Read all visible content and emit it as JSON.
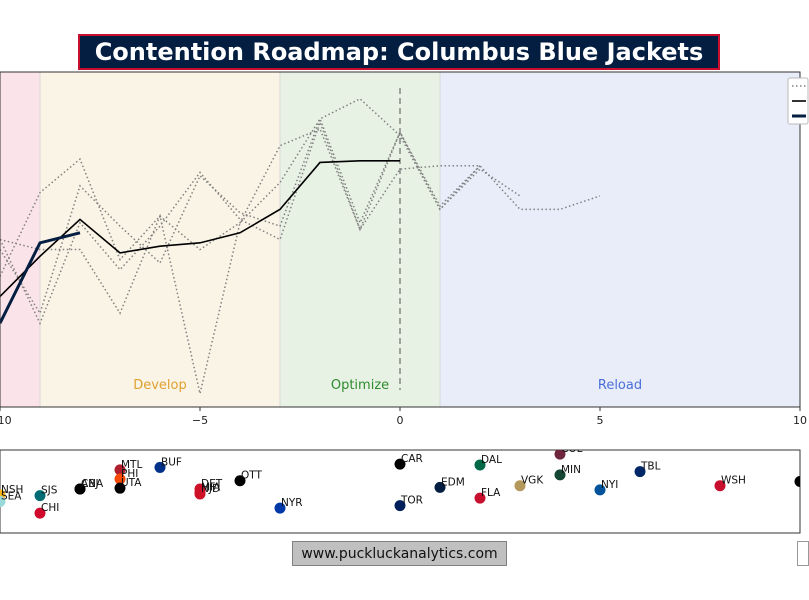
{
  "title": "Contention Roadmap: Columbus Blue Jackets",
  "footer": "www.puckluckanalytics.com",
  "colors": {
    "title_bg": "#041e42",
    "title_border": "#c8102e",
    "line_dark": "#041e42",
    "line_black": "#000000",
    "line_dotted": "#808080"
  },
  "chart_data": [
    {
      "type": "line",
      "title": "",
      "xlabel": "",
      "ylabel": "",
      "xlim": [
        -10,
        10
      ],
      "ylim": [
        0,
        1
      ],
      "x_ticks": [
        -10,
        -5,
        0,
        5,
        10
      ],
      "x_tick_labels": [
        "−10",
        "−5",
        "0",
        "5",
        "10"
      ],
      "grid": false,
      "legend_placement": "top-right",
      "vline_x": 0,
      "phases": [
        {
          "name": "",
          "x_start": -10,
          "x_end": -9,
          "color": "#fbe3ea",
          "label_color": "#c8102e"
        },
        {
          "name": "Develop",
          "x_start": -9,
          "x_end": -3,
          "color": "#faf4e6",
          "label_color": "#e0a030"
        },
        {
          "name": "Optimize",
          "x_start": -3,
          "x_end": 1,
          "color": "#e8f2e4",
          "label_color": "#2e8b2e"
        },
        {
          "name": "Reload",
          "x_start": 1,
          "x_end": 10,
          "color": "#e9edfa",
          "label_color": "#4a6fd8"
        }
      ],
      "series": [
        {
          "style": "dotted",
          "x": [
            -10,
            -9,
            -8,
            -7,
            -6,
            -5,
            -4,
            -3,
            -2,
            -1,
            0,
            1,
            2,
            3
          ],
          "y": [
            0.5,
            0.25,
            0.55,
            0.41,
            0.54,
            0.7,
            0.56,
            0.5,
            0.85,
            0.53,
            0.82,
            0.59,
            0.71,
            0.63
          ]
        },
        {
          "style": "dotted",
          "x": [
            -10,
            -9,
            -8,
            -7,
            -6,
            -5,
            -4,
            -3,
            -2,
            -1,
            0,
            1,
            2,
            3,
            4,
            5
          ],
          "y": [
            0.39,
            0.64,
            0.74,
            0.44,
            0.57,
            0.47,
            0.55,
            0.78,
            0.83,
            0.53,
            0.71,
            0.72,
            0.72,
            0.59,
            0.59,
            0.63
          ]
        },
        {
          "style": "dotted",
          "x": [
            -10,
            -9,
            -8,
            -7,
            -6,
            -5,
            -4,
            -3,
            -2,
            -1,
            0,
            1,
            2
          ],
          "y": [
            0.47,
            0.28,
            0.66,
            0.54,
            0.43,
            0.69,
            0.58,
            0.54,
            0.86,
            0.92,
            0.81,
            0.59,
            0.72
          ]
        },
        {
          "style": "dotted",
          "x": [
            -10,
            -9,
            -8,
            -7,
            -6,
            -5,
            -4,
            -3,
            -2,
            -1,
            0,
            1,
            2
          ],
          "y": [
            0.5,
            0.47,
            0.47,
            0.28,
            0.57,
            0.04,
            0.55,
            0.67,
            0.86,
            0.55,
            0.82,
            0.6,
            0.72
          ]
        },
        {
          "style": "solid-black",
          "x": [
            -10,
            -9,
            -8,
            -7,
            -6,
            -5,
            -4,
            -3,
            -2,
            -1,
            0
          ],
          "y": [
            0.33,
            0.45,
            0.56,
            0.46,
            0.48,
            0.49,
            0.52,
            0.59,
            0.73,
            0.735,
            0.735
          ]
        },
        {
          "style": "solid-dark",
          "x": [
            -10,
            -9,
            -8
          ],
          "y": [
            0.25,
            0.49,
            0.52
          ]
        }
      ]
    },
    {
      "type": "scatter",
      "title": "",
      "xlim": [
        -10,
        10
      ],
      "points": [
        {
          "team": "NSH",
          "x": -10,
          "y": 0.46,
          "color": "#ffb81c"
        },
        {
          "team": "SEA",
          "x": -10,
          "y": 0.38,
          "color": "#99d9d9"
        },
        {
          "team": "SJS",
          "x": -9,
          "y": 0.45,
          "color": "#006d75"
        },
        {
          "team": "CHI",
          "x": -9,
          "y": 0.24,
          "color": "#cf0a2c"
        },
        {
          "team": "CBJ",
          "x": -8,
          "y": 0.53,
          "color": "#041e42"
        },
        {
          "team": "ANA",
          "x": -8,
          "y": 0.53,
          "color": "#000000"
        },
        {
          "team": "MTL",
          "x": -7,
          "y": 0.76,
          "color": "#af1e2d"
        },
        {
          "team": "PHI",
          "x": -7,
          "y": 0.65,
          "color": "#f74902"
        },
        {
          "team": "UTA",
          "x": -7,
          "y": 0.54,
          "color": "#000000"
        },
        {
          "team": "BUF",
          "x": -6,
          "y": 0.79,
          "color": "#003087"
        },
        {
          "team": "DET",
          "x": -5,
          "y": 0.53,
          "color": "#ce1126"
        },
        {
          "team": "MIA",
          "x": -5,
          "y": 0.49,
          "color": "#ce1126"
        },
        {
          "team": "NJD",
          "x": -5,
          "y": 0.47,
          "color": "#ce1126"
        },
        {
          "team": "OTT",
          "x": -4,
          "y": 0.63,
          "color": "#000000"
        },
        {
          "team": "NYR",
          "x": -3,
          "y": 0.3,
          "color": "#0038a8"
        },
        {
          "team": "CAR",
          "x": 0,
          "y": 0.83,
          "color": "#000000"
        },
        {
          "team": "TOR",
          "x": 0,
          "y": 0.33,
          "color": "#00205b"
        },
        {
          "team": "EDM",
          "x": 1,
          "y": 0.55,
          "color": "#041e42"
        },
        {
          "team": "DAL",
          "x": 2,
          "y": 0.82,
          "color": "#006847"
        },
        {
          "team": "FLA",
          "x": 2,
          "y": 0.42,
          "color": "#c8102e"
        },
        {
          "team": "VGK",
          "x": 3,
          "y": 0.57,
          "color": "#b4975a"
        },
        {
          "team": "COL",
          "x": 4,
          "y": 0.95,
          "color": "#6f263d"
        },
        {
          "team": "MIN",
          "x": 4,
          "y": 0.7,
          "color": "#154734"
        },
        {
          "team": "NYI",
          "x": 5,
          "y": 0.52,
          "color": "#00539b"
        },
        {
          "team": "TBL",
          "x": 6,
          "y": 0.74,
          "color": "#002868"
        },
        {
          "team": "WSH",
          "x": 8,
          "y": 0.57,
          "color": "#c8102e"
        },
        {
          "team": "",
          "x": 10,
          "y": 0.62,
          "color": "#000000"
        }
      ]
    }
  ]
}
